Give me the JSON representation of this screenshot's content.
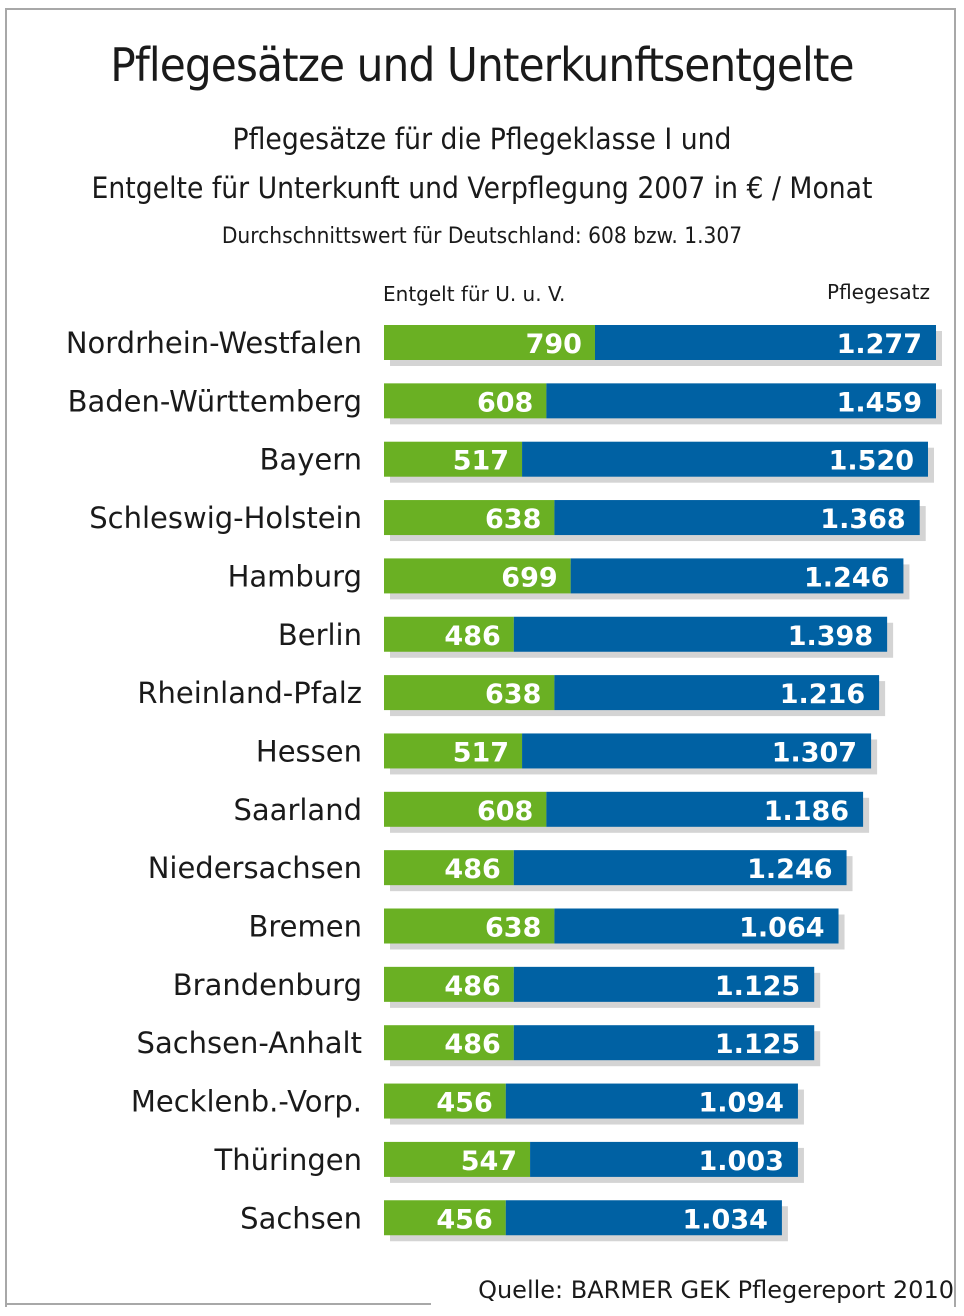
{
  "chart_data": {
    "type": "bar",
    "orientation": "horizontal",
    "stacked": true,
    "title": "Pflegesätze und Unterkunftsentgelte",
    "subtitle_lines": [
      "Pflegesätze für die Pflegeklasse I und",
      "Entgelte für Unterkunft und Verpflegung 2007 in € / Monat"
    ],
    "note": "Durchschnittswert für Deutschland: 608 bzw. 1.307",
    "source": "Quelle: BARMER GEK Pflegereport 2010",
    "xlabel": "",
    "ylabel": "",
    "legend_placement": "top",
    "grid": false,
    "xlim": [
      0,
      2067
    ],
    "categories": [
      "Nordrhein-Westfalen",
      "Baden-Württemberg",
      "Bayern",
      "Schleswig-Holstein",
      "Hamburg",
      "Berlin",
      "Rheinland-Pfalz",
      "Hessen",
      "Saarland",
      "Niedersachsen",
      "Bremen",
      "Brandenburg",
      "Sachsen-Anhalt",
      "Mecklenb.-Vorp.",
      "Thüringen",
      "Sachsen"
    ],
    "series": [
      {
        "name": "Entgelt für U. u. V.",
        "color": "#6ab023",
        "values": [
          790,
          608,
          517,
          638,
          699,
          486,
          638,
          517,
          608,
          486,
          638,
          486,
          486,
          456,
          547,
          456
        ],
        "labels": [
          "790",
          "608",
          "517",
          "638",
          "699",
          "486",
          "638",
          "517",
          "608",
          "486",
          "638",
          "486",
          "486",
          "456",
          "547",
          "456"
        ]
      },
      {
        "name": "Pflegesatz",
        "color": "#0061a3",
        "values": [
          1277,
          1459,
          1520,
          1368,
          1246,
          1398,
          1216,
          1307,
          1186,
          1246,
          1064,
          1125,
          1125,
          1094,
          1003,
          1034
        ],
        "labels": [
          "1.277",
          "1.459",
          "1.520",
          "1.368",
          "1.246",
          "1.398",
          "1.216",
          "1.307",
          "1.186",
          "1.246",
          "1.064",
          "1.125",
          "1.125",
          "1.094",
          "1.003",
          "1.034"
        ]
      }
    ],
    "shadow_color": "#d4d4d4"
  }
}
